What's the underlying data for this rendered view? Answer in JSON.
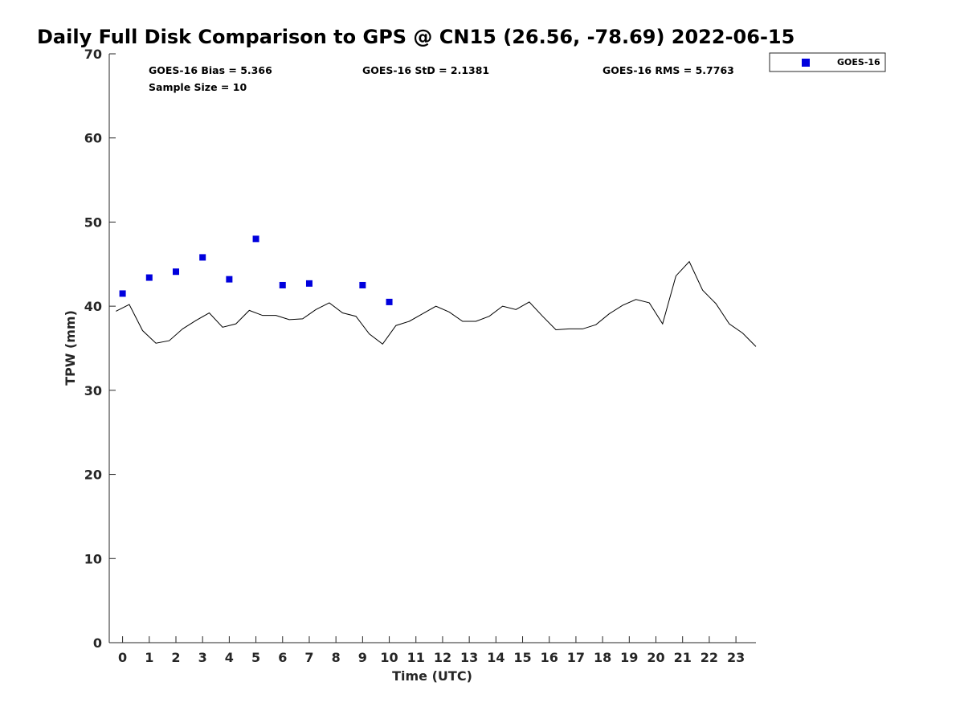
{
  "chart_data": {
    "type": "scatter",
    "title": "Daily Full Disk Comparison to GPS @ CN15 (26.56, -78.69) 2022-06-15",
    "xlabel": "Time (UTC)",
    "ylabel": "TPW (mm)",
    "xlim": [
      -0.5,
      23.75
    ],
    "ylim": [
      0,
      70
    ],
    "x_ticks": [
      0,
      1,
      2,
      3,
      4,
      5,
      6,
      7,
      8,
      9,
      10,
      11,
      12,
      13,
      14,
      15,
      16,
      17,
      18,
      19,
      20,
      21,
      22,
      23
    ],
    "y_ticks": [
      0,
      10,
      20,
      30,
      40,
      50,
      60,
      70
    ],
    "grid": false,
    "legend_position": "top-right outside",
    "stats": {
      "bias": "GOES-16 Bias = 5.366",
      "std": "GOES-16 StD = 2.1381",
      "rms": "GOES-16 RMS = 5.7763",
      "sample_size": "Sample Size = 10"
    },
    "series": [
      {
        "name": "GOES-16",
        "type": "scatter",
        "color": "#0000dd",
        "marker": "square",
        "x": [
          0,
          1,
          2,
          3,
          4,
          5,
          6,
          7,
          9,
          10
        ],
        "y": [
          41.5,
          43.4,
          44.1,
          45.8,
          43.2,
          48.0,
          42.5,
          42.7,
          42.5,
          40.5
        ]
      },
      {
        "type": "line",
        "color": "#000000",
        "x": [
          -0.25,
          0.25,
          0.75,
          1.25,
          1.75,
          2.25,
          2.75,
          3.25,
          3.75,
          4.25,
          4.75,
          5.25,
          5.75,
          6.25,
          6.75,
          7.25,
          7.75,
          8.25,
          8.75,
          9.25,
          9.75,
          10.25,
          10.75,
          11.25,
          11.75,
          12.25,
          12.75,
          13.25,
          13.75,
          14.25,
          14.75,
          15.25,
          15.75,
          16.25,
          16.75,
          17.25,
          17.75,
          18.25,
          18.75,
          19.25,
          19.75,
          20.25,
          20.75,
          21.25,
          21.75,
          22.25,
          22.75,
          23.25,
          23.75
        ],
        "y": [
          39.4,
          40.2,
          37.1,
          35.6,
          35.9,
          37.3,
          38.3,
          39.2,
          37.5,
          37.9,
          39.5,
          38.9,
          38.9,
          38.4,
          38.5,
          39.6,
          40.4,
          39.2,
          38.8,
          36.7,
          35.5,
          37.7,
          38.2,
          39.1,
          40.0,
          39.3,
          38.2,
          38.2,
          38.8,
          40.0,
          39.6,
          40.5,
          38.8,
          37.2,
          37.3,
          37.3,
          37.8,
          39.1,
          40.1,
          40.8,
          40.4,
          37.9,
          43.6,
          45.3,
          41.9,
          40.3,
          37.9,
          36.8,
          35.2
        ]
      }
    ]
  }
}
